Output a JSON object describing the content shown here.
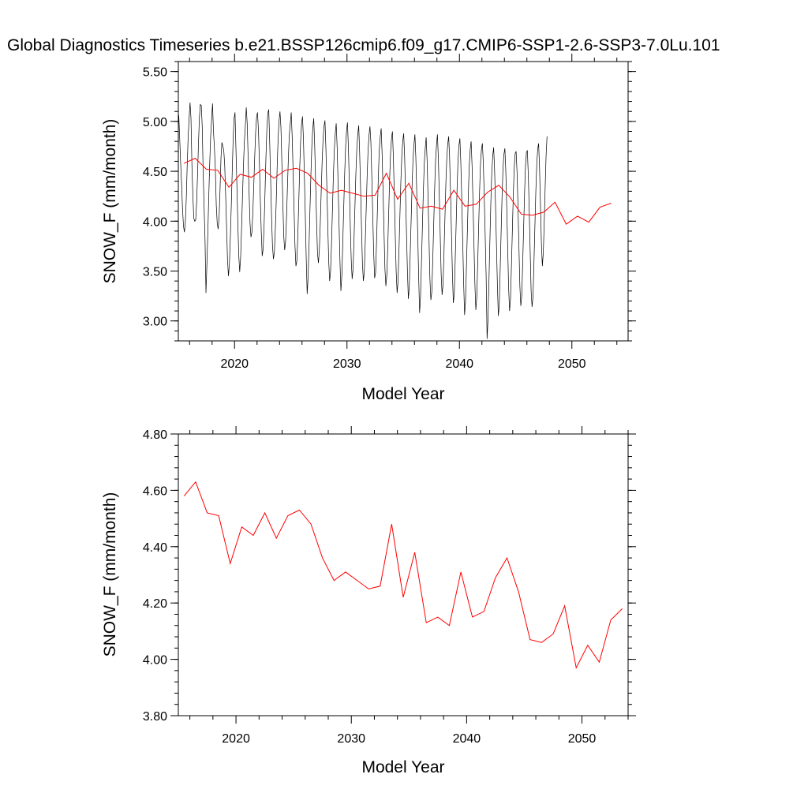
{
  "title": "Global Diagnostics Timeseries b.e21.BSSP126cmip6.f09_g17.CMIP6-SSP1-2.6-SSP3-7.0Lu.101",
  "colors": {
    "monthly": "#000000",
    "annual": "#ff0000",
    "axes": "#000000"
  },
  "chart_data": [
    {
      "type": "line",
      "xlabel": "Model Year",
      "ylabel": "SNOW_F (mm/month)",
      "xlim": [
        2015,
        2055
      ],
      "ylim": [
        2.8,
        5.6
      ],
      "xticks": [
        2020,
        2030,
        2040,
        2050
      ],
      "yticks": [
        3.0,
        3.5,
        4.0,
        4.5,
        5.0,
        5.5
      ],
      "ytick_labels": [
        "3.00",
        "3.50",
        "4.00",
        "4.50",
        "5.00",
        "5.50"
      ],
      "grid": false,
      "series": [
        {
          "values": [
            5.06,
            4.82,
            4.58,
            4.37,
            4.12,
            3.95,
            3.89,
            3.99,
            4.23,
            4.57,
            4.85,
            5.03,
            5.19,
            5.03,
            4.56,
            4.26,
            4.03,
            4.0,
            4.01,
            4.18,
            4.46,
            4.78,
            5.04,
            5.17,
            5.16,
            4.95,
            4.49,
            4.14,
            3.81,
            3.28,
            3.57,
            3.89,
            4.25,
            4.58,
            4.85,
            5.02,
            5.18,
            4.9,
            4.74,
            4.52,
            4.16,
            3.98,
            3.92,
            4.04,
            4.31,
            4.63,
            4.79,
            4.75,
            4.71,
            4.56,
            4.26,
            3.94,
            3.61,
            3.45,
            3.57,
            3.83,
            4.15,
            4.49,
            4.82,
            5.03,
            5.09,
            4.72,
            4.36,
            3.98,
            3.66,
            3.49,
            3.64,
            3.93,
            4.25,
            4.56,
            4.8,
            4.95,
            5.14,
            4.98,
            4.64,
            4.29,
            3.98,
            3.84,
            3.89,
            4.08,
            4.35,
            4.64,
            4.89,
            5.04,
            5.09,
            4.91,
            4.6,
            4.21,
            3.9,
            3.65,
            3.72,
            3.95,
            4.28,
            4.64,
            4.93,
            5.08,
            5.12,
            4.79,
            4.42,
            4.04,
            3.75,
            3.62,
            3.69,
            3.91,
            4.2,
            4.55,
            4.83,
            5.01,
            5.1,
            4.94,
            4.58,
            4.2,
            3.85,
            3.71,
            3.8,
            4.05,
            4.35,
            4.65,
            4.87,
            4.98,
            5.09,
            4.85,
            4.5,
            4.12,
            3.75,
            3.55,
            3.6,
            3.85,
            4.18,
            4.52,
            4.8,
            4.97,
            5.05,
            4.83,
            4.46,
            4.06,
            3.62,
            3.27,
            3.44,
            3.76,
            4.12,
            4.47,
            4.76,
            4.93,
            5.03,
            4.77,
            4.4,
            4.02,
            3.68,
            3.58,
            3.71,
            3.98,
            4.3,
            4.6,
            4.83,
            4.95,
            5.01,
            4.73,
            4.34,
            3.95,
            3.6,
            3.4,
            3.5,
            3.78,
            4.12,
            4.46,
            4.72,
            4.88,
            4.98,
            4.74,
            4.38,
            3.98,
            3.6,
            3.3,
            3.45,
            3.78,
            4.13,
            4.47,
            4.74,
            4.9,
            4.99,
            4.74,
            4.37,
            3.97,
            3.62,
            3.42,
            3.52,
            3.82,
            4.15,
            4.48,
            4.73,
            4.87,
            4.96,
            4.69,
            4.33,
            3.93,
            3.57,
            3.4,
            3.5,
            3.79,
            4.12,
            4.45,
            4.71,
            4.86,
            4.95,
            4.79,
            4.44,
            4.05,
            3.68,
            3.43,
            3.48,
            3.78,
            4.12,
            4.46,
            4.72,
            4.85,
            4.93,
            4.67,
            4.3,
            3.9,
            3.52,
            3.35,
            3.46,
            3.74,
            4.08,
            4.42,
            4.68,
            4.83,
            4.9,
            4.64,
            4.27,
            3.87,
            3.49,
            3.28,
            3.4,
            3.72,
            4.06,
            4.4,
            4.65,
            4.8,
            4.88,
            4.65,
            4.28,
            3.88,
            3.5,
            3.22,
            3.35,
            3.68,
            4.02,
            4.37,
            4.63,
            4.77,
            4.87,
            4.63,
            4.26,
            3.86,
            3.44,
            3.08,
            3.25,
            3.59,
            3.95,
            4.3,
            4.58,
            4.73,
            4.84,
            4.61,
            4.24,
            3.83,
            3.42,
            3.21,
            3.29,
            3.6,
            3.95,
            4.31,
            4.6,
            4.76,
            4.87,
            4.63,
            4.26,
            3.86,
            3.47,
            3.26,
            3.37,
            3.68,
            4.02,
            4.37,
            4.63,
            4.77,
            4.85,
            4.64,
            4.29,
            3.88,
            3.48,
            3.18,
            3.27,
            3.61,
            3.97,
            4.33,
            4.61,
            4.76,
            4.83,
            4.58,
            4.21,
            3.8,
            3.38,
            3.06,
            3.2,
            3.55,
            3.91,
            4.27,
            4.56,
            4.72,
            4.8,
            4.55,
            4.18,
            3.77,
            3.37,
            3.11,
            3.24,
            3.58,
            3.94,
            4.3,
            4.58,
            4.72,
            4.78,
            4.58,
            4.24,
            3.85,
            3.45,
            2.82,
            3.02,
            3.4,
            3.8,
            4.18,
            4.48,
            4.65,
            4.74,
            4.52,
            4.17,
            3.77,
            3.37,
            3.05,
            3.16,
            3.52,
            3.89,
            4.25,
            4.53,
            4.67,
            4.73,
            4.5,
            4.14,
            3.73,
            3.33,
            3.1,
            3.22,
            3.55,
            3.91,
            4.27,
            4.54,
            4.68,
            4.7,
            4.49,
            4.14,
            3.74,
            3.35,
            3.15,
            3.25,
            3.57,
            3.93,
            4.28,
            4.55,
            4.69,
            4.71,
            4.46,
            4.1,
            3.7,
            3.3,
            3.14,
            3.24,
            3.57,
            3.93,
            4.29,
            4.56,
            4.72,
            4.78,
            4.53,
            4.16,
            3.77,
            3.55,
            3.68,
            3.99,
            4.34,
            4.66,
            4.85
          ]
        },
        {
          "values": [
            4.58,
            4.63,
            4.52,
            4.51,
            4.34,
            4.47,
            4.44,
            4.52,
            4.43,
            4.51,
            4.53,
            4.48,
            4.36,
            4.28,
            4.31,
            4.28,
            4.25,
            4.26,
            4.48,
            4.22,
            4.38,
            4.13,
            4.15,
            4.12,
            4.31,
            4.15,
            4.17,
            4.29,
            4.36,
            4.24,
            4.07,
            4.06,
            4.09,
            4.19,
            3.97,
            4.05,
            3.99,
            4.14,
            4.18
          ]
        }
      ]
    },
    {
      "type": "line",
      "xlabel": "Model Year",
      "ylabel": "SNOW_F (mm/month)",
      "xlim": [
        2015,
        2054
      ],
      "ylim": [
        3.8,
        4.8
      ],
      "xticks": [
        2020,
        2030,
        2040,
        2050
      ],
      "yticks": [
        3.8,
        4.0,
        4.2,
        4.4,
        4.6,
        4.8
      ],
      "ytick_labels": [
        "3.80",
        "4.00",
        "4.20",
        "4.40",
        "4.60",
        "4.80"
      ],
      "grid": false,
      "series": [
        {
          "x": [
            2015.5,
            2016.5,
            2017.5,
            2018.5,
            2019.5,
            2020.5,
            2021.5,
            2022.5,
            2023.5,
            2024.5,
            2025.5,
            2026.5,
            2027.5,
            2028.5,
            2029.5,
            2030.5,
            2031.5,
            2032.5,
            2033.5,
            2034.5,
            2035.5,
            2036.5,
            2037.5,
            2038.5,
            2039.5,
            2040.5,
            2041.5,
            2042.5,
            2043.5,
            2044.5,
            2045.5,
            2046.5,
            2047.5,
            2048.5,
            2049.5,
            2050.5,
            2051.5,
            2052.5,
            2053.5
          ],
          "values": [
            4.58,
            4.63,
            4.52,
            4.51,
            4.34,
            4.47,
            4.44,
            4.52,
            4.43,
            4.51,
            4.53,
            4.48,
            4.36,
            4.28,
            4.31,
            4.28,
            4.25,
            4.26,
            4.48,
            4.22,
            4.38,
            4.13,
            4.15,
            4.12,
            4.31,
            4.15,
            4.17,
            4.29,
            4.36,
            4.24,
            4.07,
            4.06,
            4.09,
            4.19,
            3.97,
            4.05,
            3.99,
            4.14,
            4.18
          ]
        }
      ]
    }
  ]
}
